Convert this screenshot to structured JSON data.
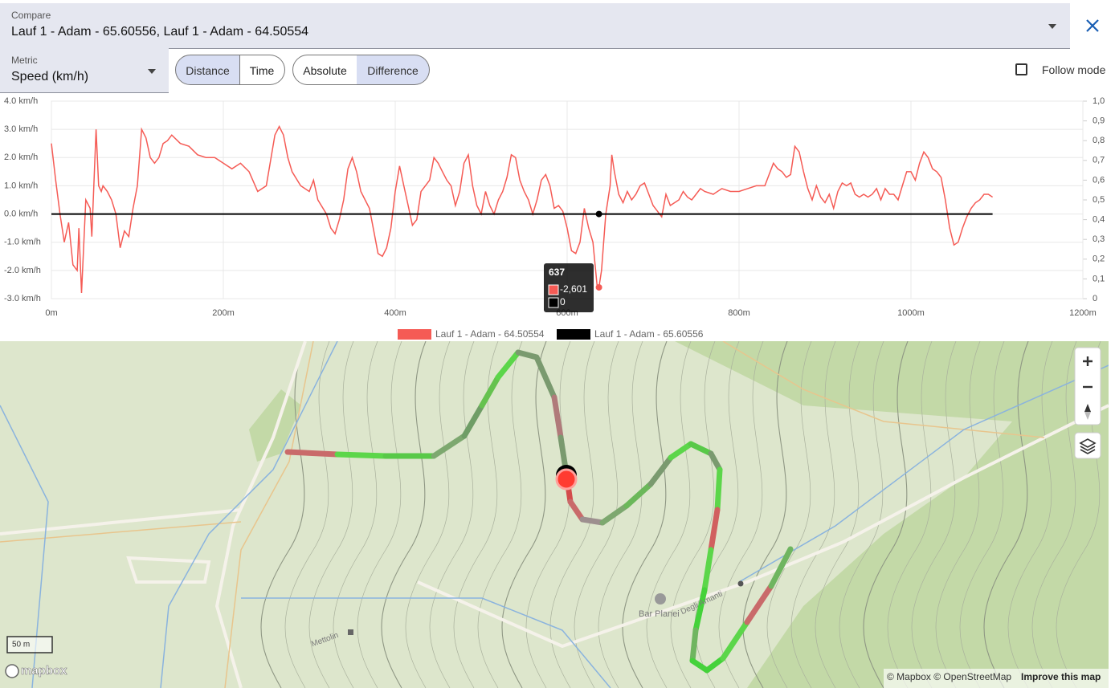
{
  "compare": {
    "label": "Compare",
    "value": "Lauf 1 - Adam - 65.60556, Lauf 1 - Adam - 64.50554"
  },
  "metric": {
    "label": "Metric",
    "value": "Speed (km/h)"
  },
  "x_mode_buttons": [
    "Distance",
    "Time"
  ],
  "value_mode_buttons": [
    "Absolute",
    "Difference"
  ],
  "follow_mode": "Follow mode",
  "chart_data": {
    "type": "line",
    "xlim": [
      0,
      1200
    ],
    "xticks": [
      {
        "value": 0,
        "label": "0m"
      },
      {
        "value": 200,
        "label": "200m"
      },
      {
        "value": 400,
        "label": "400m"
      },
      {
        "value": 600,
        "label": "600m"
      },
      {
        "value": 800,
        "label": "800m"
      },
      {
        "value": 1000,
        "label": "1000m"
      },
      {
        "value": 1200,
        "label": "1200m"
      }
    ],
    "ylim": [
      -3,
      4
    ],
    "yticks": [
      {
        "value": 4,
        "label": "4.0 km/h"
      },
      {
        "value": 3,
        "label": "3.0 km/h"
      },
      {
        "value": 2,
        "label": "2.0 km/h"
      },
      {
        "value": 1,
        "label": "1.0 km/h"
      },
      {
        "value": 0,
        "label": "0.0 km/h"
      },
      {
        "value": -1,
        "label": "-1.0 km/h"
      },
      {
        "value": -2,
        "label": "-2.0 km/h"
      },
      {
        "value": -3,
        "label": "-3.0 km/h"
      }
    ],
    "y2lim": [
      0,
      1
    ],
    "y2ticks": [
      {
        "value": 1,
        "label": "1,0"
      },
      {
        "value": 0.9,
        "label": "0,9"
      },
      {
        "value": 0.8,
        "label": "0,8"
      },
      {
        "value": 0.7,
        "label": "0,7"
      },
      {
        "value": 0.6,
        "label": "0,6"
      },
      {
        "value": 0.5,
        "label": "0,5"
      },
      {
        "value": 0.4,
        "label": "0,4"
      },
      {
        "value": 0.3,
        "label": "0,3"
      },
      {
        "value": 0.2,
        "label": "0,2"
      },
      {
        "value": 0.1,
        "label": "0,1"
      },
      0
    ],
    "grid": true,
    "series": [
      {
        "name": "Lauf 1 - Adam - 64.50554",
        "color": "#f55b55",
        "x": [
          0,
          5,
          10,
          15,
          20,
          25,
          30,
          32,
          35,
          40,
          45,
          47,
          50,
          52,
          55,
          58,
          60,
          65,
          70,
          75,
          80,
          85,
          90,
          95,
          100,
          105,
          110,
          115,
          120,
          125,
          130,
          135,
          140,
          150,
          160,
          170,
          180,
          190,
          200,
          210,
          220,
          230,
          240,
          250,
          260,
          265,
          270,
          275,
          280,
          290,
          300,
          305,
          310,
          320,
          325,
          330,
          335,
          340,
          345,
          350,
          355,
          360,
          365,
          370,
          375,
          380,
          385,
          390,
          395,
          400,
          405,
          410,
          415,
          420,
          425,
          430,
          440,
          445,
          450,
          455,
          460,
          465,
          470,
          475,
          480,
          485,
          490,
          495,
          500,
          505,
          510,
          515,
          520,
          525,
          530,
          535,
          540,
          545,
          550,
          555,
          560,
          565,
          570,
          575,
          580,
          585,
          590,
          595,
          600,
          605,
          610,
          615,
          620,
          625,
          630,
          635,
          637,
          640,
          645,
          650,
          652,
          655,
          660,
          665,
          670,
          675,
          680,
          685,
          690,
          695,
          700,
          705,
          710,
          715,
          720,
          730,
          735,
          740,
          745,
          750,
          755,
          760,
          770,
          780,
          790,
          800,
          810,
          820,
          830,
          840,
          845,
          850,
          855,
          860,
          865,
          870,
          875,
          880,
          885,
          890,
          895,
          900,
          905,
          910,
          915,
          920,
          925,
          930,
          935,
          940,
          945,
          950,
          955,
          960,
          965,
          970,
          975,
          980,
          985,
          990,
          995,
          1000,
          1005,
          1010,
          1015,
          1020,
          1025,
          1030,
          1035,
          1040,
          1045,
          1050,
          1055,
          1060,
          1065,
          1070,
          1075,
          1080,
          1085,
          1090,
          1095
        ],
        "values": [
          2.5,
          1.2,
          0,
          -1.0,
          -0.3,
          -1.8,
          -2.0,
          -0.5,
          -2.8,
          0.5,
          0.2,
          -0.8,
          1.5,
          3.0,
          1.0,
          0.8,
          1.0,
          0.8,
          0.5,
          0,
          -1.2,
          -0.6,
          -0.8,
          0.2,
          1.0,
          3.0,
          2.7,
          2.0,
          1.8,
          2.0,
          2.5,
          2.6,
          2.8,
          2.5,
          2.4,
          2.1,
          2.0,
          2.0,
          1.8,
          1.6,
          1.8,
          1.5,
          0.8,
          1.0,
          2.8,
          3.1,
          2.8,
          2.0,
          1.5,
          1.0,
          0.8,
          1.2,
          0.5,
          0,
          -0.5,
          -0.7,
          -0.2,
          0.5,
          1.6,
          2.0,
          1.5,
          0.8,
          0.5,
          0.2,
          -0.6,
          -1.4,
          -1.5,
          -1.2,
          -0.5,
          0.8,
          1.7,
          1.0,
          0.3,
          -0.4,
          -0.2,
          0.8,
          1.2,
          2.0,
          1.8,
          1.5,
          1.2,
          1.0,
          0.3,
          0.8,
          1.8,
          2.1,
          1.0,
          0.3,
          0,
          0.8,
          0.3,
          0,
          0.5,
          0.8,
          1.3,
          2.1,
          2.0,
          1.2,
          0.8,
          0.5,
          0,
          0.5,
          1.2,
          1.4,
          1.0,
          0.2,
          0.3,
          0.1,
          -0.5,
          -1.3,
          -1.4,
          -1.0,
          0.2,
          -0.5,
          -1.0,
          -2.6,
          -2.601,
          -2.0,
          0,
          1.0,
          2.1,
          1.5,
          0.7,
          0.4,
          0.8,
          0.5,
          0.7,
          1.0,
          1.1,
          0.7,
          0.3,
          0.1,
          -0.1,
          0.7,
          0.3,
          0.5,
          0.8,
          0.6,
          0.5,
          0.7,
          0.9,
          0.8,
          0.7,
          0.9,
          0.8,
          0.8,
          0.9,
          1.0,
          1.0,
          1.8,
          1.6,
          1.5,
          1.3,
          1.4,
          2.4,
          2.2,
          1.5,
          0.9,
          0.5,
          1.0,
          0.6,
          0.4,
          0.7,
          0.2,
          0.8,
          1.1,
          1.0,
          1.1,
          0.7,
          0.6,
          0.7,
          0.6,
          0.7,
          0.9,
          0.5,
          0.9,
          0.7,
          0.7,
          0.5,
          1.0,
          1.5,
          1.5,
          1.2,
          1.8,
          2.2,
          2.0,
          1.6,
          1.5,
          1.3,
          0.5,
          -0.5,
          -1.1,
          -1.0,
          -0.5,
          -0.1,
          0.2,
          0.4,
          0.5,
          0.7,
          0.7,
          0.6
        ]
      },
      {
        "name": "Lauf 1 - Adam - 65.60556",
        "color": "#000000",
        "x": [
          0,
          1095
        ],
        "values": [
          0,
          0
        ]
      }
    ],
    "tooltip": {
      "x": 637,
      "values": [
        {
          "value": -2.601,
          "label": "-2,601"
        },
        0
      ]
    }
  },
  "map": {
    "labels": [
      "Bar Planei",
      "Degli Amanti",
      "Mettolin"
    ],
    "scale": "50 m",
    "logo": "mapbox",
    "attribution": "© Mapbox © OpenStreetMap",
    "improve": "Improve this map"
  }
}
